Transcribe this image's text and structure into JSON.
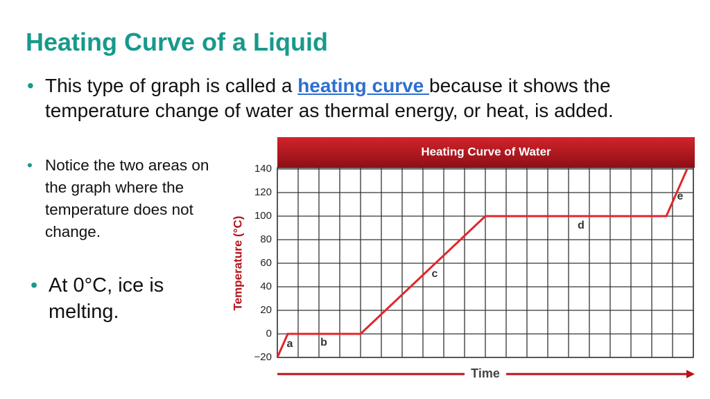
{
  "slide": {
    "title": "Heating Curve of a Liquid",
    "bullets": [
      [
        "This type of graph is called a ",
        "heating curve ",
        "because it shows the temperature change of water as thermal energy, or heat, is added."
      ],
      "Notice the two areas on the graph where the temperature does not change.",
      "At 0°C, ice is melting."
    ]
  },
  "chart_data": {
    "type": "line",
    "title": "Heating Curve of Water",
    "x_label": "Time",
    "y_label": "Temperature (°C)",
    "x": [
      0,
      0.5,
      4,
      10,
      18.7,
      19.7
    ],
    "series": [
      {
        "color": "#e0262a",
        "values": [
          -20,
          0,
          0,
          100,
          100,
          140
        ]
      }
    ],
    "xlim": [
      0,
      20
    ],
    "ylim": [
      -20,
      140
    ],
    "yticks": [
      {
        "value": -20,
        "label": "−20"
      },
      0,
      20,
      40,
      60,
      80,
      100,
      120,
      140
    ],
    "grid": true,
    "annotations": [
      "a",
      "b",
      "c",
      "d",
      "e"
    ]
  }
}
